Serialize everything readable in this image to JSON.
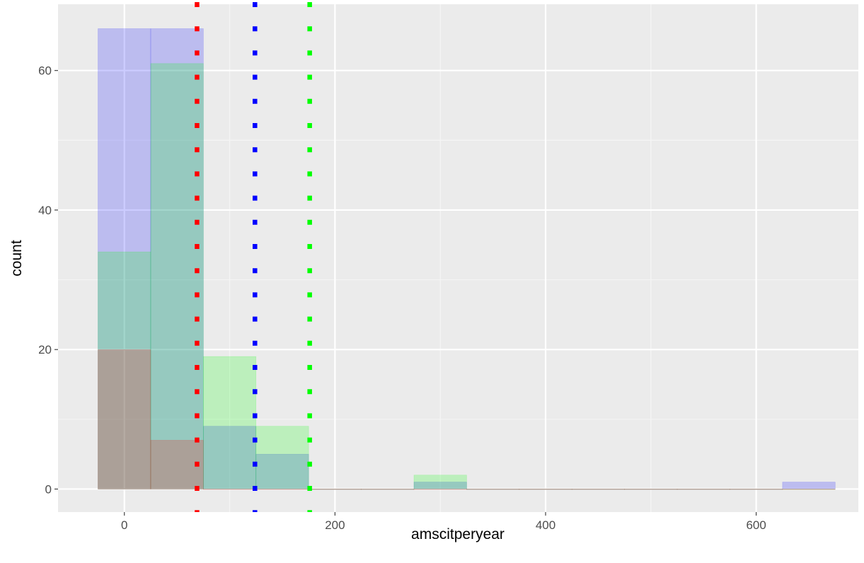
{
  "chart_data": {
    "type": "bar",
    "xlabel": "amscitperyear",
    "ylabel": "count",
    "xlim": [
      -63,
      697
    ],
    "ylim": [
      -3.3,
      69.5
    ],
    "x_ticks": [
      0,
      200,
      400,
      600
    ],
    "y_ticks": [
      0,
      20,
      40,
      60
    ],
    "grid": true,
    "bin_width": 50,
    "bin_centers": [
      0,
      50,
      100,
      150,
      200,
      250,
      300,
      350,
      400,
      450,
      500,
      550,
      600,
      650
    ],
    "series": [
      {
        "color": "#0000ff",
        "values": [
          66,
          66,
          9,
          5,
          0,
          0,
          1,
          0,
          0,
          0,
          0,
          0,
          0,
          1
        ]
      },
      {
        "color": "#00ff00",
        "values": [
          34,
          61,
          19,
          9,
          0,
          0,
          2,
          0,
          0,
          0,
          0,
          0,
          0,
          0
        ]
      },
      {
        "color": "#ff0000",
        "values": [
          20,
          7,
          0,
          0,
          0,
          0,
          0,
          0,
          0,
          0,
          0,
          0,
          0,
          0
        ]
      }
    ],
    "vlines": [
      {
        "x": 69,
        "color": "#ff0000"
      },
      {
        "x": 124,
        "color": "#0000ff"
      },
      {
        "x": 176,
        "color": "#00ff00"
      }
    ]
  }
}
